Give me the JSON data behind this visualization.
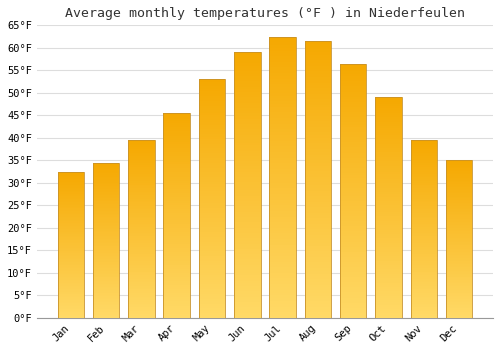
{
  "title": "Average monthly temperatures (°F ) in Niederfeulen",
  "months": [
    "Jan",
    "Feb",
    "Mar",
    "Apr",
    "May",
    "Jun",
    "Jul",
    "Aug",
    "Sep",
    "Oct",
    "Nov",
    "Dec"
  ],
  "values": [
    32.5,
    34.5,
    39.5,
    45.5,
    53.0,
    59.0,
    62.5,
    61.5,
    56.5,
    49.0,
    39.5,
    35.0
  ],
  "bar_color_top": "#F5A800",
  "bar_color_bottom": "#FFD966",
  "bar_edge_color": "#C8922A",
  "ylim": [
    0,
    65
  ],
  "yticks": [
    0,
    5,
    10,
    15,
    20,
    25,
    30,
    35,
    40,
    45,
    50,
    55,
    60,
    65
  ],
  "grid_color": "#dddddd",
  "background_color": "#ffffff",
  "title_fontsize": 9.5,
  "tick_fontsize": 7.5,
  "title_font": "monospace",
  "bar_width": 0.75
}
